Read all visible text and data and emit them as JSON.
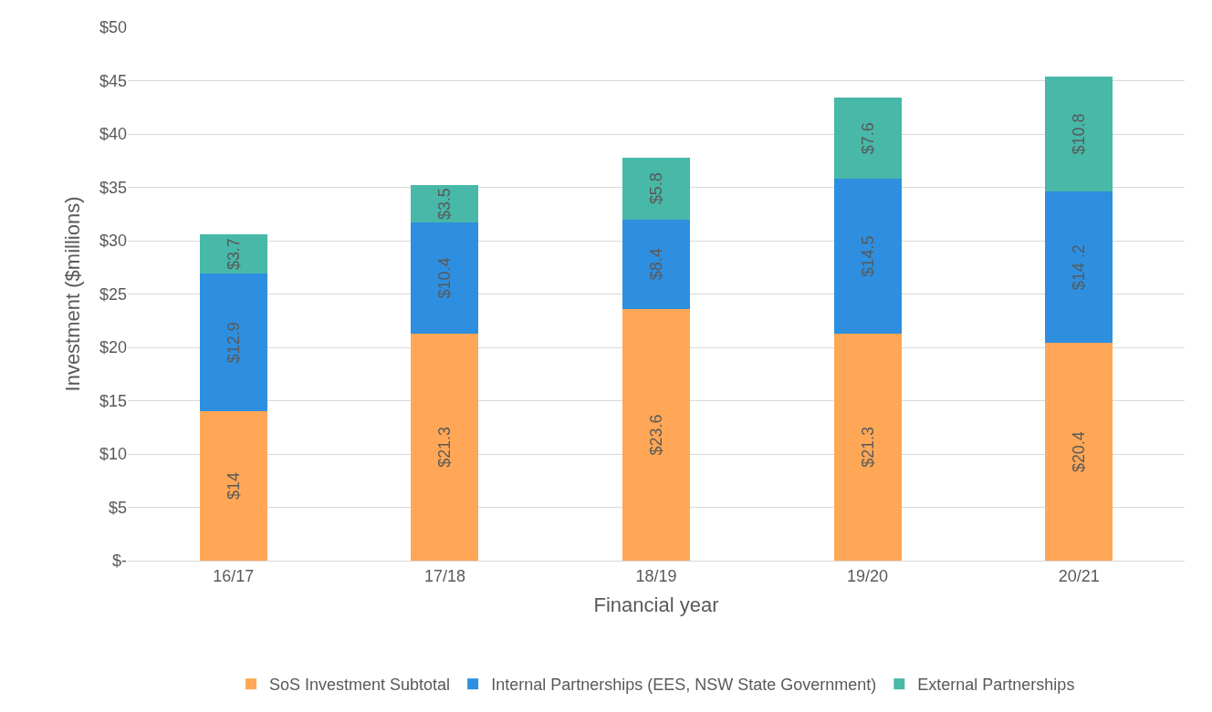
{
  "chart_data": {
    "type": "bar",
    "stacked": true,
    "xlabel": "Financial year",
    "ylabel": "Investment ($millions)",
    "categories": [
      "16/17",
      "17/18",
      "18/19",
      "19/20",
      "20/21"
    ],
    "series": [
      {
        "name": "SoS Investment Subtotal",
        "color": "#ffa756",
        "values": [
          14,
          21.3,
          23.6,
          21.3,
          20.4
        ],
        "value_labels": [
          "$14",
          "$21.3",
          "$23.6",
          "$21.3",
          "$20.4"
        ]
      },
      {
        "name": "Internal Partnerships (EES, NSW State Government)",
        "color": "#2e8fe0",
        "values": [
          12.9,
          10.4,
          8.4,
          14.5,
          14.2
        ],
        "value_labels": [
          "$12.9",
          "$10.4",
          "$8.4",
          "$14.5",
          "$14 .2"
        ]
      },
      {
        "name": "External Partnerships",
        "color": "#48b8a8",
        "values": [
          3.7,
          3.5,
          5.8,
          7.6,
          10.8
        ],
        "value_labels": [
          "$3.7",
          "$3.5",
          "$5.8",
          "$7.6",
          "$10.8"
        ]
      }
    ],
    "ylim": [
      0,
      50
    ],
    "yticks": [
      {
        "value": 0,
        "label": "$-"
      },
      {
        "value": 5,
        "label": "$5"
      },
      {
        "value": 10,
        "label": "$10"
      },
      {
        "value": 15,
        "label": "$15"
      },
      {
        "value": 20,
        "label": "$20"
      },
      {
        "value": 25,
        "label": "$25"
      },
      {
        "value": 30,
        "label": "$30"
      },
      {
        "value": 35,
        "label": "$35"
      },
      {
        "value": 40,
        "label": "$40"
      },
      {
        "value": 45,
        "label": "$45"
      },
      {
        "value": 50,
        "label": "$50"
      }
    ],
    "grid": "y",
    "legend": "bottom"
  }
}
